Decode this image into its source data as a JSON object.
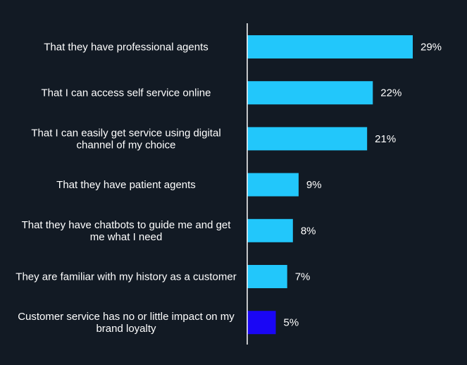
{
  "chart_data": {
    "type": "bar",
    "orientation": "horizontal",
    "categories": [
      [
        "That they have professional agents"
      ],
      [
        "That I can access self service online"
      ],
      [
        "That I can easily get service using digital",
        "channel of my choice"
      ],
      [
        "That they have patient agents"
      ],
      [
        "That they have chatbots to guide me and get",
        "me what I need"
      ],
      [
        "They are familiar with my history as a customer"
      ],
      [
        "Customer service has no or little impact on my",
        "brand loyalty"
      ]
    ],
    "values": [
      29,
      22,
      21,
      9,
      8,
      7,
      5
    ],
    "value_labels": [
      "29%",
      "22%",
      "21%",
      "9%",
      "8%",
      "7%",
      "5%"
    ],
    "xlim": [
      0,
      29
    ],
    "colors": {
      "background": "#121a24",
      "bar": "#22c7fb",
      "bar_highlight": "#1a06f5",
      "axis": "#ffffff",
      "text": "#ffffff"
    },
    "highlight_index": 6,
    "grid": false,
    "legend": "none"
  }
}
